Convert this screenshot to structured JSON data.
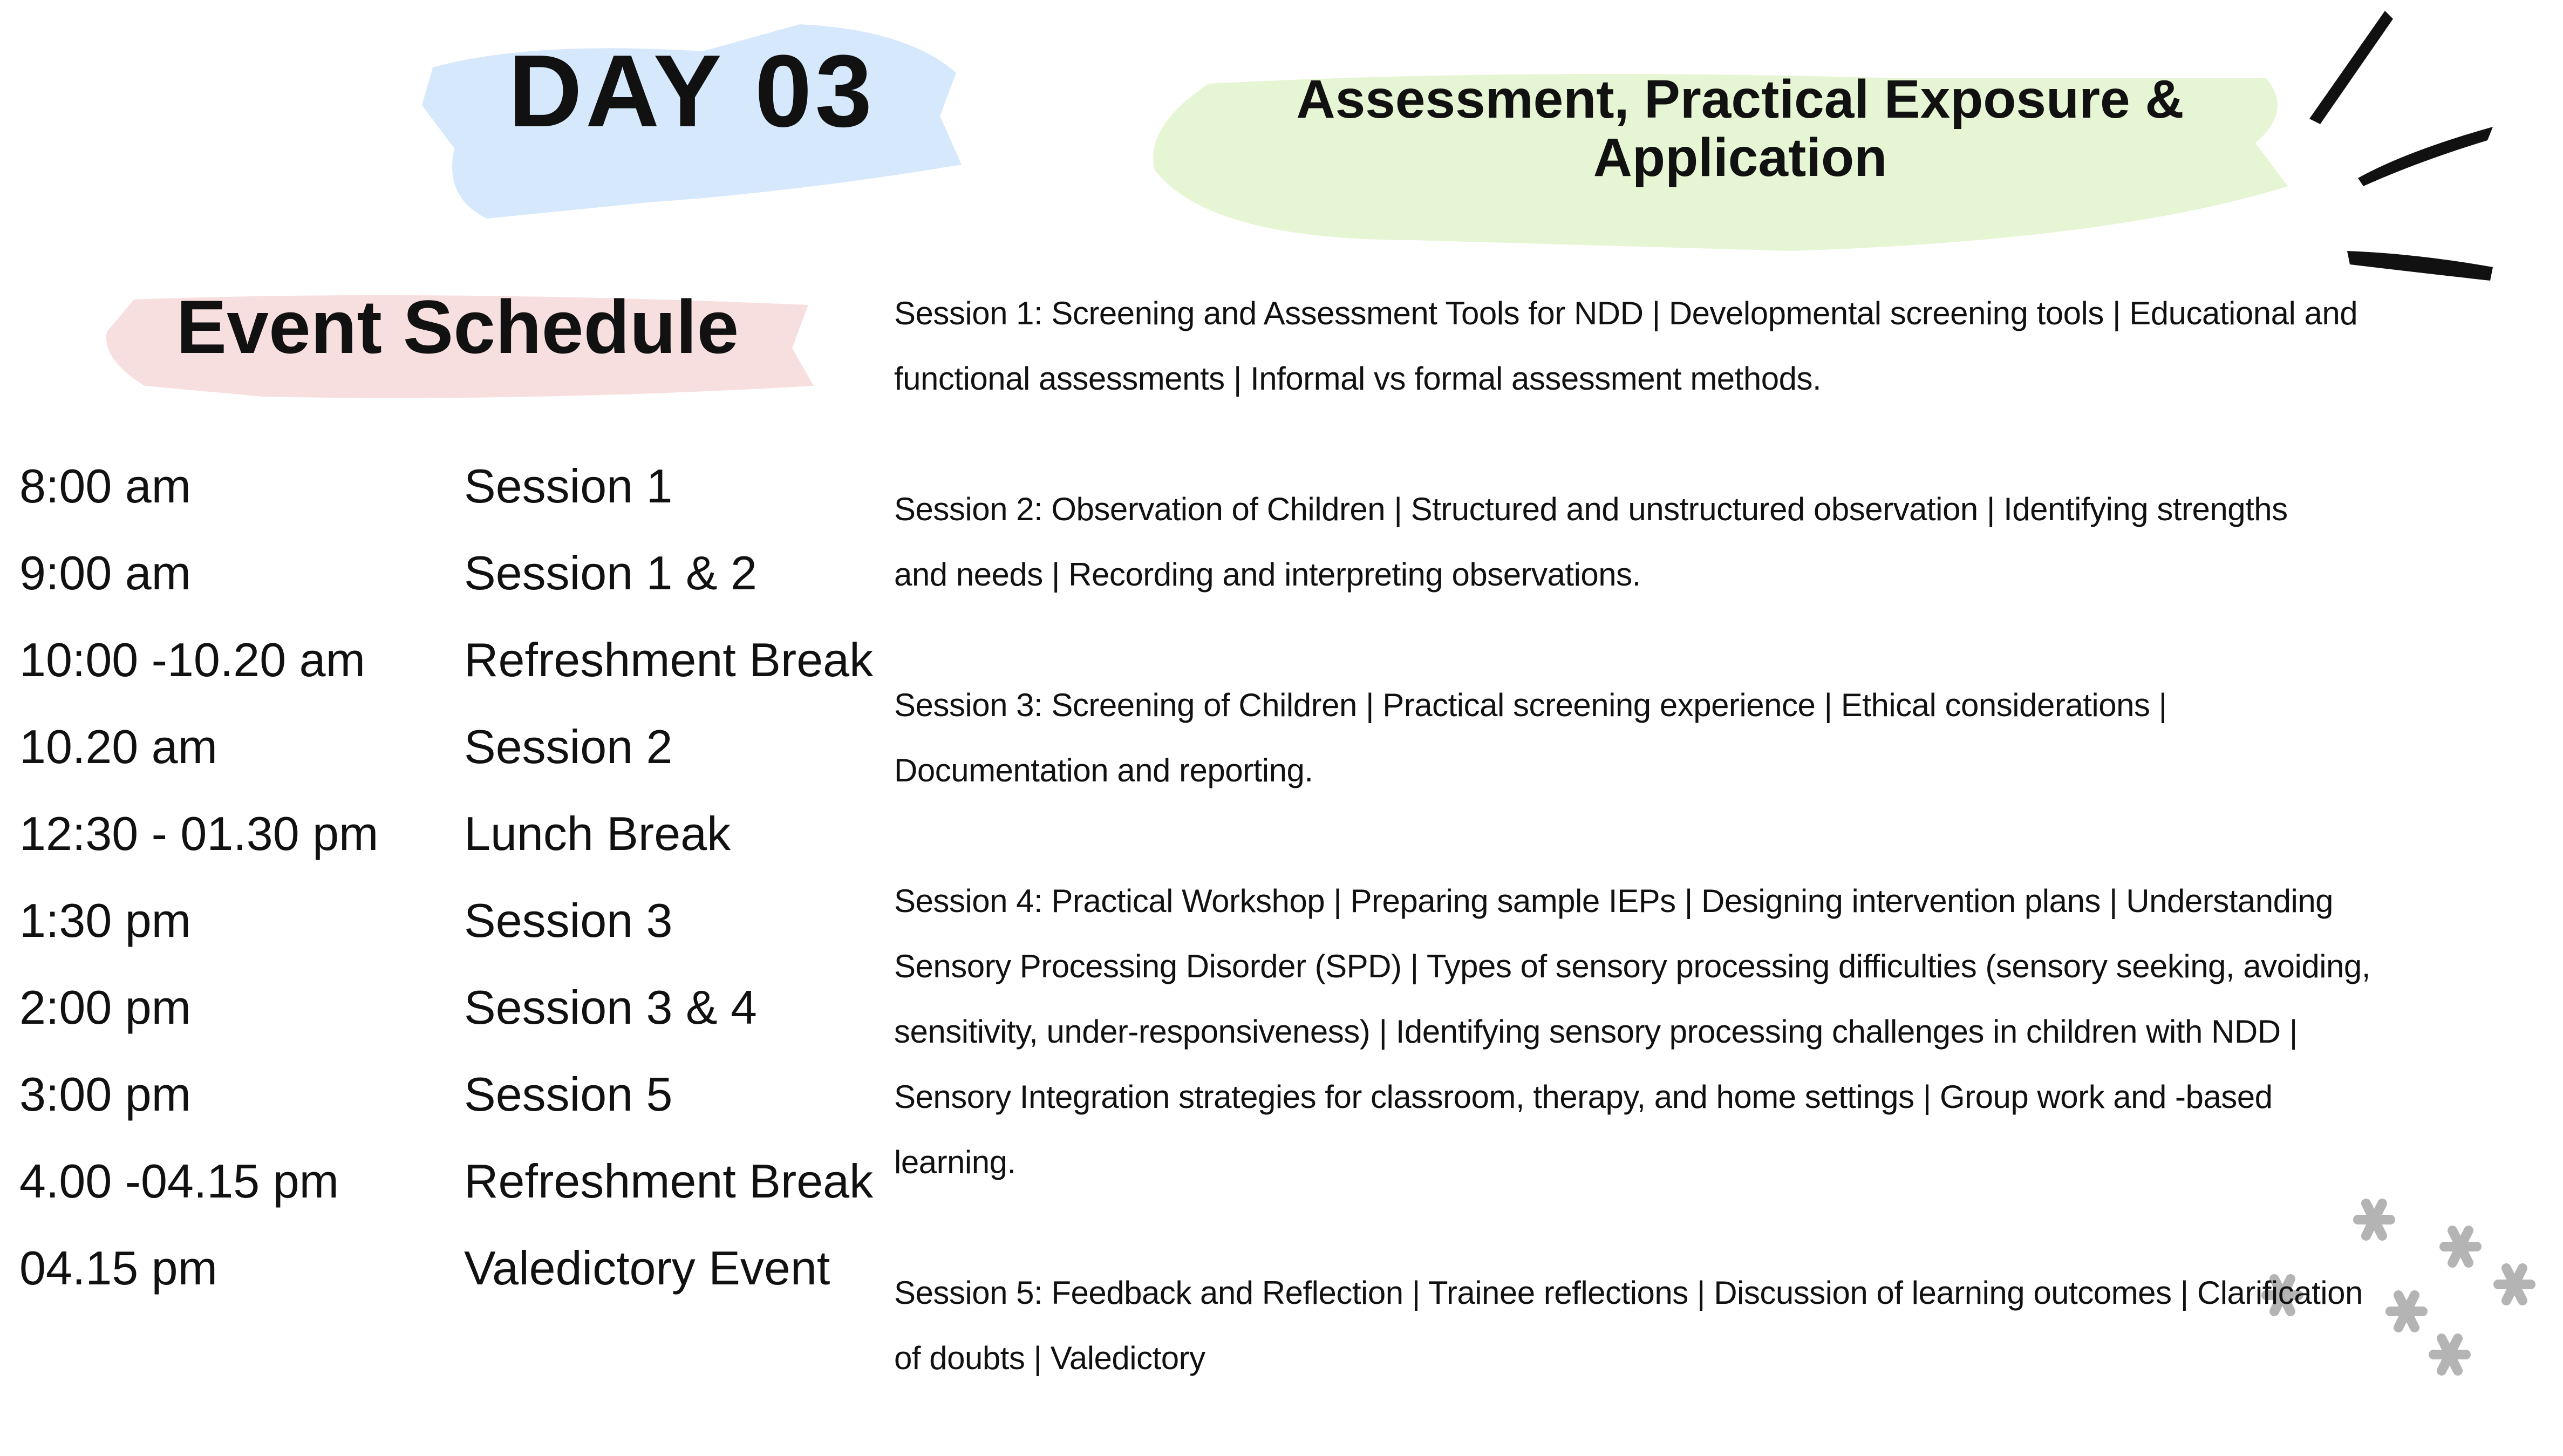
{
  "colors": {
    "day_brush": "#d6e8fb",
    "theme_brush": "#e6f5d3",
    "schedule_brush": "#f8dfdf",
    "stroke": "#111111",
    "stars": "#b4b4b4"
  },
  "header": {
    "day": "DAY 03",
    "theme_lines": [
      "Assessment, Practical Exposure &",
      "Application"
    ]
  },
  "schedule": {
    "title": "Event Schedule",
    "rows": [
      {
        "time": "8:00 am",
        "event": "Session 1"
      },
      {
        "time": "9:00 am",
        "event": "Session 1 & 2"
      },
      {
        "time": "10:00 -10.20 am",
        "event": "Refreshment Break"
      },
      {
        "time": "10.20 am",
        "event": "Session 2"
      },
      {
        "time": "12:30 - 01.30 pm",
        "event": "Lunch Break"
      },
      {
        "time": "1:30 pm",
        "event": "Session 3"
      },
      {
        "time": "2:00 pm",
        "event": "Session  3 & 4"
      },
      {
        "time": "3:00 pm",
        "event": "Session 5"
      },
      {
        "time": "4.00 -04.15 pm",
        "event": "Refreshment Break"
      },
      {
        "time": "04.15 pm",
        "event": "Valedictory Event"
      }
    ]
  },
  "sessions": [
    {
      "lines": [
        "Session 1: Screening and Assessment Tools for NDD | Developmental screening tools |  Educational and",
        "functional assessments | Informal vs formal assessment methods."
      ]
    },
    {
      "lines": [
        "Session 2: Observation of Children | Structured and unstructured observation | Identifying strengths",
        "and needs | Recording and interpreting observations."
      ]
    },
    {
      "lines": [
        "Session 3: Screening of Children | Practical screening experience | Ethical considerations |",
        "Documentation and reporting."
      ]
    },
    {
      "lines": [
        "Session 4: Practical Workshop | Preparing sample IEPs | Designing intervention plans | Understanding",
        "Sensory Processing Disorder (SPD) | Types of sensory processing difficulties (sensory seeking, avoiding,",
        "sensitivity, under-responsiveness) | Identifying sensory processing challenges in children with NDD |",
        "Sensory Integration strategies for classroom, therapy, and home settings  | Group work and -based",
        "learning."
      ]
    },
    {
      "lines": [
        "Session 5: Feedback and Reflection | Trainee reflections | Discussion of learning outcomes | Clarification",
        "of doubts | Valedictory"
      ]
    }
  ]
}
